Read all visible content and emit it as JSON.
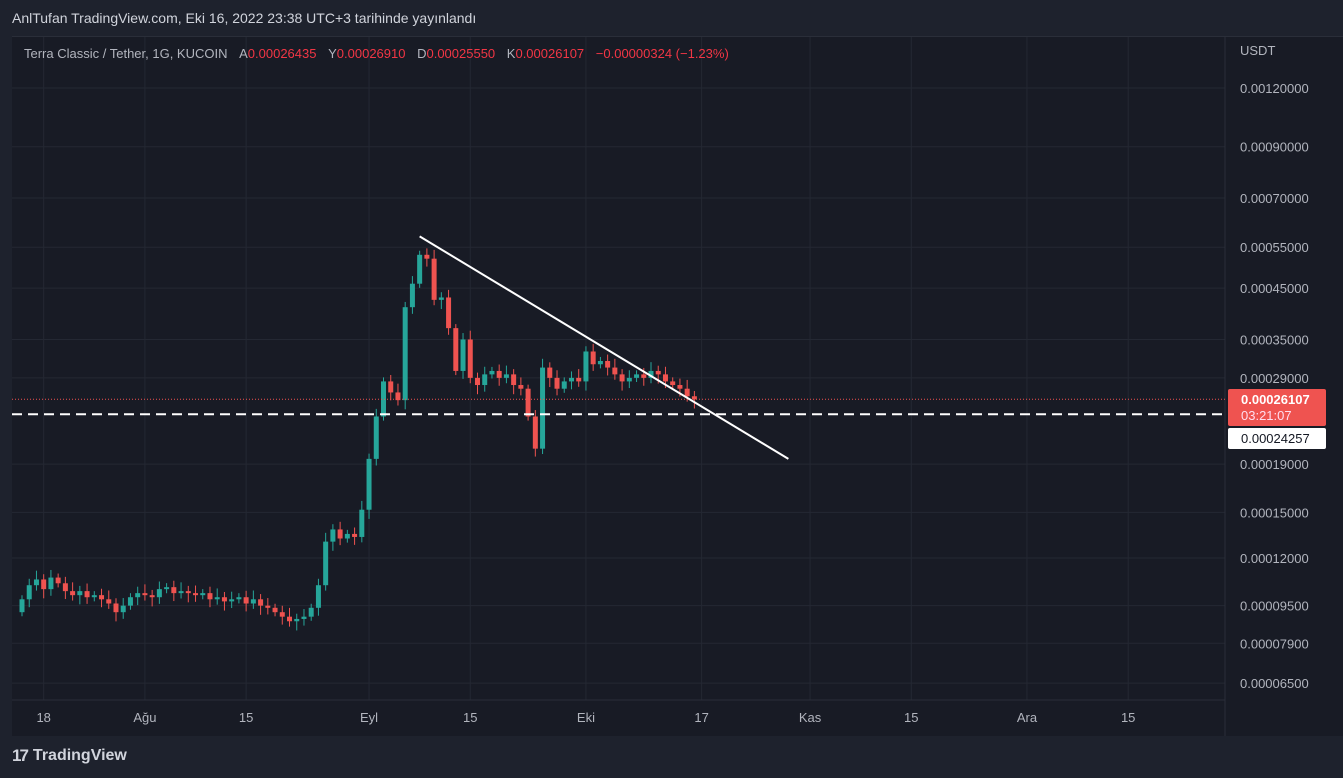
{
  "header": {
    "published": "AnlTufan TradingView.com, Eki 16, 2022 23:38 UTC+3 tarihinde yayınlandı"
  },
  "legend": {
    "symbol": "Terra Classic / Tether, 1G, KUCOIN",
    "open_label": "A",
    "open": "0.00026435",
    "high_label": "Y",
    "high": "0.00026910",
    "low_label": "D",
    "low": "0.00025550",
    "close_label": "K",
    "close": "0.00026107",
    "change": "−0.00000324 (−1.23%)"
  },
  "footer": {
    "brand": "TradingView"
  },
  "colors": {
    "up": "#26a69a",
    "down": "#ef5350",
    "bg": "#181b25"
  },
  "chart_data": {
    "type": "candlestick",
    "currency_label": "USDT",
    "scale": "log",
    "y_ticks": [
      "0.00120000",
      "0.00090000",
      "0.00070000",
      "0.00055000",
      "0.00045000",
      "0.00035000",
      "0.00029000",
      "0.00019000",
      "0.00015000",
      "0.00012000",
      "0.00009500",
      "0.00007900",
      "0.00006500"
    ],
    "x_ticks": [
      {
        "label": "18",
        "day": 3
      },
      {
        "label": "Ağu",
        "day": 17
      },
      {
        "label": "15",
        "day": 31
      },
      {
        "label": "Eyl",
        "day": 48
      },
      {
        "label": "15",
        "day": 62
      },
      {
        "label": "Eki",
        "day": 78
      },
      {
        "label": "17",
        "day": 94
      },
      {
        "label": "Kas",
        "day": 109
      },
      {
        "label": "15",
        "day": 123
      },
      {
        "label": "Ara",
        "day": 139
      },
      {
        "label": "15",
        "day": 153
      }
    ],
    "first_open": 9.2e-05,
    "closes_e5": [
      9.8,
      10.5,
      10.8,
      10.3,
      10.9,
      10.6,
      10.2,
      10.0,
      10.2,
      9.9,
      10.0,
      9.8,
      9.6,
      9.2,
      9.5,
      9.9,
      10.1,
      10.0,
      9.9,
      10.3,
      10.4,
      10.1,
      10.2,
      10.1,
      10.0,
      10.1,
      9.8,
      9.9,
      9.7,
      9.8,
      9.9,
      9.6,
      9.8,
      9.5,
      9.4,
      9.2,
      9.0,
      8.8,
      8.9,
      9.0,
      9.4,
      10.5,
      13.0,
      13.8,
      13.2,
      13.5,
      13.3,
      15.2,
      19.5,
      24.0,
      28.5,
      27.0,
      26.0,
      41.0,
      46.0,
      53.0,
      52.0,
      42.5,
      43.0,
      37.0,
      30.0,
      35.0,
      29.0,
      28.0,
      29.5,
      30.0,
      29.0,
      29.5,
      28.0,
      27.5,
      24.0,
      20.5,
      30.5,
      29.0,
      27.5,
      28.5,
      29.0,
      28.5,
      33.0,
      31.0,
      31.5,
      30.5,
      29.5,
      28.5,
      29.0,
      29.5,
      29.0,
      30.0,
      29.5,
      28.5,
      28.0,
      27.5,
      26.5,
      26.107
    ],
    "last_price": "0.00026107",
    "countdown": "03:21:07",
    "dashed_level": "0.00024257",
    "trendline": {
      "from": {
        "day": 55,
        "price": 0.00058
      },
      "to": {
        "day": 106,
        "price": 0.000195
      }
    }
  }
}
